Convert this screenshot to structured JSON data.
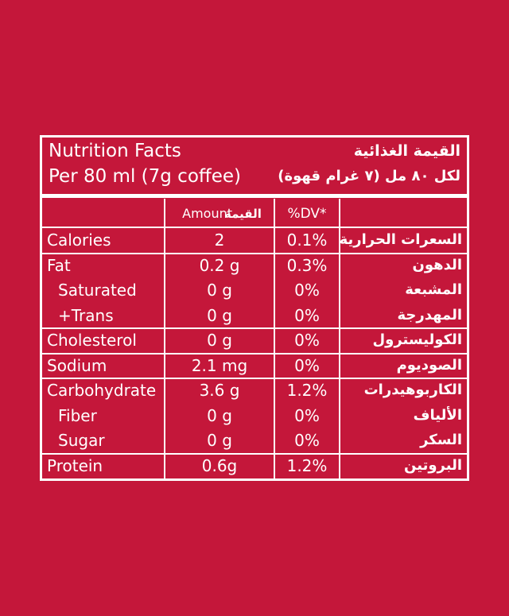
{
  "title": {
    "en": "Nutrition Facts",
    "ar": "القيمة الغذائية"
  },
  "serving": {
    "en": "Per 80 ml (7g coffee)",
    "ar": "لكل ٨٠ مل (٧ غرام قهوة)"
  },
  "header": {
    "amount_en": "Amount",
    "amount_ar": "القيمة",
    "dv": "%DV*"
  },
  "rows": [
    {
      "name": "Calories",
      "amount": "2",
      "dv": "0.1%",
      "name_ar": "السعرات الحرارية"
    },
    {
      "name": "Fat",
      "amount": "0.2 g",
      "dv": "0.3%",
      "name_ar": "الدهون",
      "sub_rows": [
        {
          "name": "Saturated",
          "amount": "0 g",
          "dv": "0%",
          "name_ar": "المشبعة"
        },
        {
          "name": "+Trans",
          "amount": "0 g",
          "dv": "0%",
          "name_ar": "المهدرجة"
        }
      ]
    },
    {
      "name": "Cholesterol",
      "amount": "0 g",
      "dv": "0%",
      "name_ar": "الكوليسترول"
    },
    {
      "name": "Sodium",
      "amount": "2.1 mg",
      "dv": "0%",
      "name_ar": "الصوديوم"
    },
    {
      "name": "Carbohydrate",
      "amount": "3.6 g",
      "dv": "1.2%",
      "name_ar": "الكاربوهيدرات",
      "sub_rows": [
        {
          "name": "Fiber",
          "amount": "0 g",
          "dv": "0%",
          "name_ar": "الألياف"
        },
        {
          "name": "Sugar",
          "amount": "0 g",
          "dv": "0%",
          "name_ar": "السكر"
        }
      ]
    },
    {
      "name": "Protein",
      "amount": "0.6g",
      "dv": "1.2%",
      "name_ar": "البروتين"
    }
  ]
}
